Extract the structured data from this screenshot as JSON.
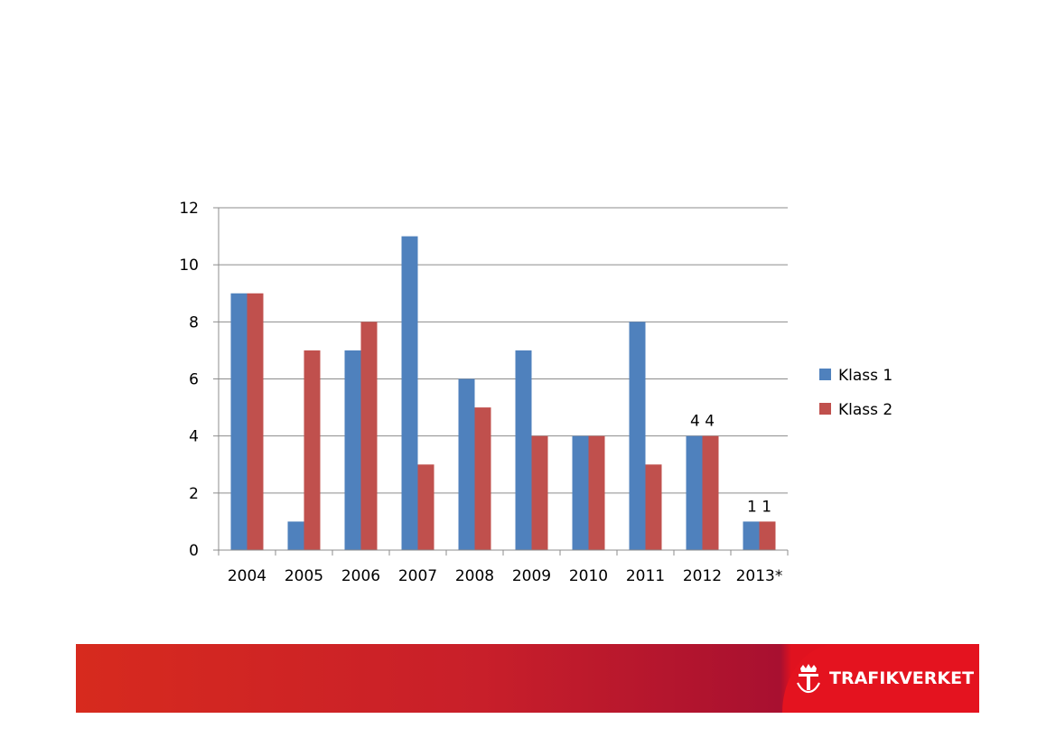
{
  "chart_data": {
    "type": "bar",
    "categories": [
      "2004",
      "2005",
      "2006",
      "2007",
      "2008",
      "2009",
      "2010",
      "2011",
      "2012",
      "2013*"
    ],
    "series": [
      {
        "name": "Klass 1",
        "values": [
          9,
          1,
          7,
          11,
          6,
          7,
          4,
          8,
          4,
          1
        ],
        "color": "#4f81bd"
      },
      {
        "name": "Klass 2",
        "values": [
          9,
          7,
          8,
          3,
          5,
          4,
          4,
          3,
          4,
          1
        ],
        "color": "#c0504d"
      }
    ],
    "ylim": [
      0,
      12
    ],
    "yticks": [
      "0",
      "2",
      "4",
      "6",
      "8",
      "10",
      "12"
    ],
    "grid": true,
    "legend_position": "right",
    "data_labels": [
      {
        "category": "2012",
        "text": "4 4"
      },
      {
        "category": "2013*",
        "text": "1 1"
      }
    ]
  },
  "footer": {
    "logo_text": "TRAFIKVERKET",
    "logo_icon": "crown-t-icon"
  }
}
